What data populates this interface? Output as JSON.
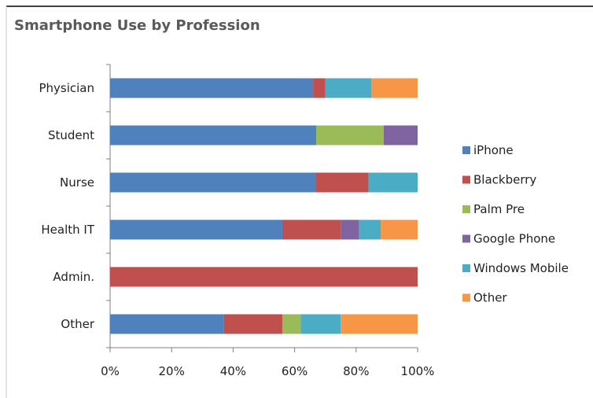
{
  "chart_data": {
    "type": "bar",
    "orientation": "horizontal",
    "stacked": true,
    "percent_stacked": true,
    "title": "Smartphone Use by Profession",
    "xlabel": "",
    "ylabel": "",
    "categories": [
      "Physician",
      "Student",
      "Nurse",
      "Health IT",
      "Admin.",
      "Other"
    ],
    "xlim": [
      0,
      100
    ],
    "x_ticks": [
      "0%",
      "20%",
      "40%",
      "60%",
      "80%",
      "100%"
    ],
    "grid": false,
    "legend_position": "right",
    "series": [
      {
        "name": "iPhone",
        "color": "#4f81bd",
        "values": [
          66,
          67,
          67,
          56,
          0,
          37
        ]
      },
      {
        "name": "Blackberry",
        "color": "#c0504d",
        "values": [
          4,
          0,
          17,
          19,
          100,
          19
        ]
      },
      {
        "name": "Palm Pre",
        "color": "#9bbb59",
        "values": [
          0,
          22,
          0,
          0,
          0,
          6
        ]
      },
      {
        "name": "Google Phone",
        "color": "#8064a2",
        "values": [
          0,
          11,
          0,
          6,
          0,
          0
        ]
      },
      {
        "name": "Windows Mobile",
        "color": "#4bacc6",
        "values": [
          15,
          0,
          16,
          7,
          0,
          13
        ]
      },
      {
        "name": "Other",
        "color": "#f79646",
        "values": [
          15,
          0,
          0,
          12,
          0,
          25
        ]
      }
    ]
  }
}
